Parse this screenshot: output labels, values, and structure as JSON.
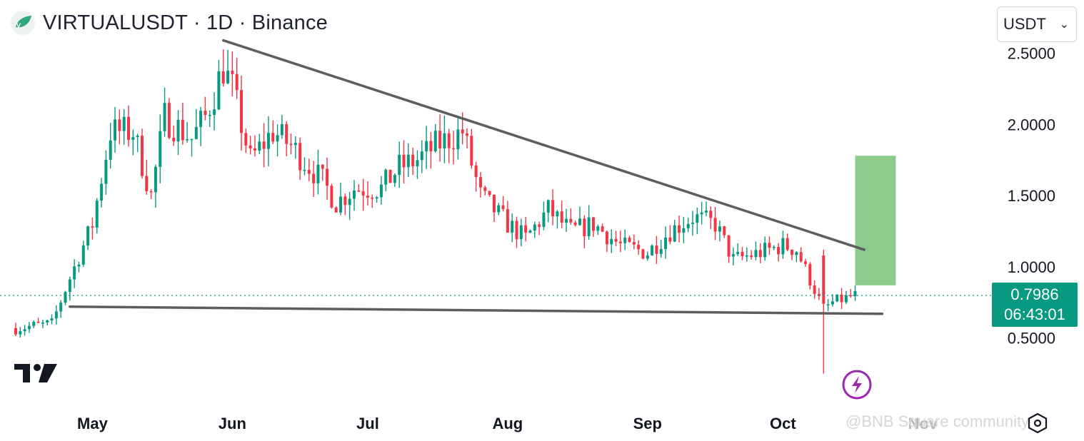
{
  "header": {
    "title": "VIRTUALUSDT · 1D · Binance"
  },
  "currency_select": {
    "value": "USDT"
  },
  "price_tag": {
    "price": "0.7986",
    "countdown": "06:43:01"
  },
  "watermark": {
    "text": "@BNB Square community"
  },
  "colors": {
    "up": "#089981",
    "down": "#f23645",
    "trendline": "#5d5d5d",
    "target_zone": "#8bcb8b",
    "price_line": "#089981",
    "bolt": "#9c27b0"
  },
  "icons": {
    "logo": "tradingview-logo-icon",
    "bolt": "lightning-bolt-icon",
    "settings": "settings-hexagon-icon"
  },
  "chart_data": {
    "type": "candlestick",
    "symbol": "VIRTUALUSDT",
    "exchange": "Binance",
    "interval": "1D",
    "y_axis": {
      "ticks": [
        2.5,
        2.0,
        1.5,
        1.0,
        0.5
      ],
      "tick_labels": [
        "2.5000",
        "2.0000",
        "1.5000",
        "1.0000",
        "0.5000"
      ],
      "ylim": [
        0.0,
        2.68
      ]
    },
    "x_axis": {
      "ticks": [
        "2025-05-01",
        "2025-06-01",
        "2025-07-01",
        "2025-08-01",
        "2025-09-01",
        "2025-10-01",
        "2025-11-01"
      ],
      "tick_labels": [
        "May",
        "Jun",
        "Jul",
        "Aug",
        "Sep",
        "Oct",
        "Nov"
      ],
      "xlim": [
        "2025-04-14",
        "2025-11-24"
      ]
    },
    "last_price": 0.7986,
    "ohlc_approx": {
      "note_free_series": true,
      "segments": [
        [
          "2025-04-14",
          0.57
        ],
        [
          "2025-04-22",
          0.6
        ],
        [
          "2025-04-26",
          0.92
        ],
        [
          "2025-05-01",
          1.3
        ],
        [
          "2025-05-05",
          1.95
        ],
        [
          "2025-05-10",
          1.95
        ],
        [
          "2025-05-14",
          1.5
        ],
        [
          "2025-05-17",
          2.05
        ],
        [
          "2025-05-23",
          1.9
        ],
        [
          "2025-05-26",
          2.05
        ],
        [
          "2025-05-30",
          2.4
        ],
        [
          "2025-06-01",
          2.25
        ],
        [
          "2025-06-05",
          1.75
        ],
        [
          "2025-06-10",
          1.95
        ],
        [
          "2025-06-14",
          1.85
        ],
        [
          "2025-06-21",
          1.6
        ],
        [
          "2025-06-24",
          1.45
        ],
        [
          "2025-06-28",
          1.55
        ],
        [
          "2025-07-04",
          1.55
        ],
        [
          "2025-07-08",
          1.7
        ],
        [
          "2025-07-12",
          1.75
        ],
        [
          "2025-07-16",
          1.85
        ],
        [
          "2025-07-22",
          1.95
        ],
        [
          "2025-07-26",
          1.5
        ],
        [
          "2025-08-01",
          1.3
        ],
        [
          "2025-08-05",
          1.2
        ],
        [
          "2025-08-10",
          1.4
        ],
        [
          "2025-08-15",
          1.25
        ],
        [
          "2025-08-20",
          1.3
        ],
        [
          "2025-08-26",
          1.15
        ],
        [
          "2025-09-01",
          1.1
        ],
        [
          "2025-09-06",
          1.25
        ],
        [
          "2025-09-11",
          1.35
        ],
        [
          "2025-09-16",
          1.3
        ],
        [
          "2025-09-20",
          1.05
        ],
        [
          "2025-09-26",
          1.1
        ],
        [
          "2025-10-01",
          1.15
        ],
        [
          "2025-10-04",
          1.12
        ],
        [
          "2025-10-10",
          0.7
        ],
        [
          "2025-10-12",
          0.75
        ],
        [
          "2025-10-17",
          0.8
        ]
      ]
    },
    "drawings": {
      "upper_trendline": {
        "from": [
          "2025-05-30",
          2.59
        ],
        "to": [
          "2025-10-19",
          1.12
        ]
      },
      "lower_trendline": {
        "from": [
          "2025-04-26",
          0.72
        ],
        "to": [
          "2025-10-23",
          0.67
        ]
      },
      "target_zone": {
        "x_range": [
          "2025-10-17",
          "2025-10-26"
        ],
        "y_range": [
          0.87,
          1.78
        ]
      },
      "flash_wick_low": 0.25
    }
  }
}
